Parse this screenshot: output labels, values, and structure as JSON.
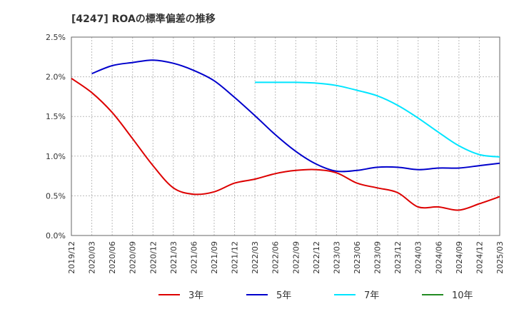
{
  "chart_data": {
    "type": "line",
    "title": "[4247]  ROAの標準偏差の推移",
    "xlabel": "",
    "ylabel": "",
    "ylim": [
      0,
      2.5
    ],
    "yticks": [
      "0.0%",
      "0.5%",
      "1.0%",
      "1.5%",
      "2.0%",
      "2.5%"
    ],
    "categories": [
      "2019/12",
      "2020/03",
      "2020/06",
      "2020/09",
      "2020/12",
      "2021/03",
      "2021/06",
      "2021/09",
      "2021/12",
      "2022/03",
      "2022/06",
      "2022/09",
      "2022/12",
      "2023/03",
      "2023/06",
      "2023/09",
      "2023/12",
      "2024/03",
      "2024/06",
      "2024/09",
      "2024/12",
      "2025/03"
    ],
    "grid": true,
    "legend_position": "bottom",
    "series": [
      {
        "name": "3年",
        "color": "#dd0000",
        "values": [
          1.98,
          1.8,
          1.55,
          1.22,
          0.88,
          0.6,
          0.52,
          0.55,
          0.66,
          0.71,
          0.78,
          0.82,
          0.83,
          0.79,
          0.66,
          0.6,
          0.54,
          0.36,
          0.36,
          0.32,
          0.4,
          0.49
        ]
      },
      {
        "name": "5年",
        "color": "#0000cc",
        "values": [
          null,
          2.04,
          2.14,
          2.18,
          2.21,
          2.17,
          2.08,
          1.95,
          1.74,
          1.51,
          1.27,
          1.06,
          0.9,
          0.81,
          0.82,
          0.86,
          0.86,
          0.83,
          0.85,
          0.85,
          0.88,
          0.91
        ]
      },
      {
        "name": "7年",
        "color": "#00e5ff",
        "values": [
          null,
          null,
          null,
          null,
          null,
          null,
          null,
          null,
          null,
          1.93,
          1.93,
          1.93,
          1.92,
          1.89,
          1.83,
          1.76,
          1.64,
          1.48,
          1.3,
          1.13,
          1.02,
          0.99
        ]
      },
      {
        "name": "10年",
        "color": "#228b22",
        "values": [
          null,
          null,
          null,
          null,
          null,
          null,
          null,
          null,
          null,
          null,
          null,
          null,
          null,
          null,
          null,
          null,
          null,
          null,
          null,
          null,
          null,
          null
        ]
      }
    ]
  }
}
